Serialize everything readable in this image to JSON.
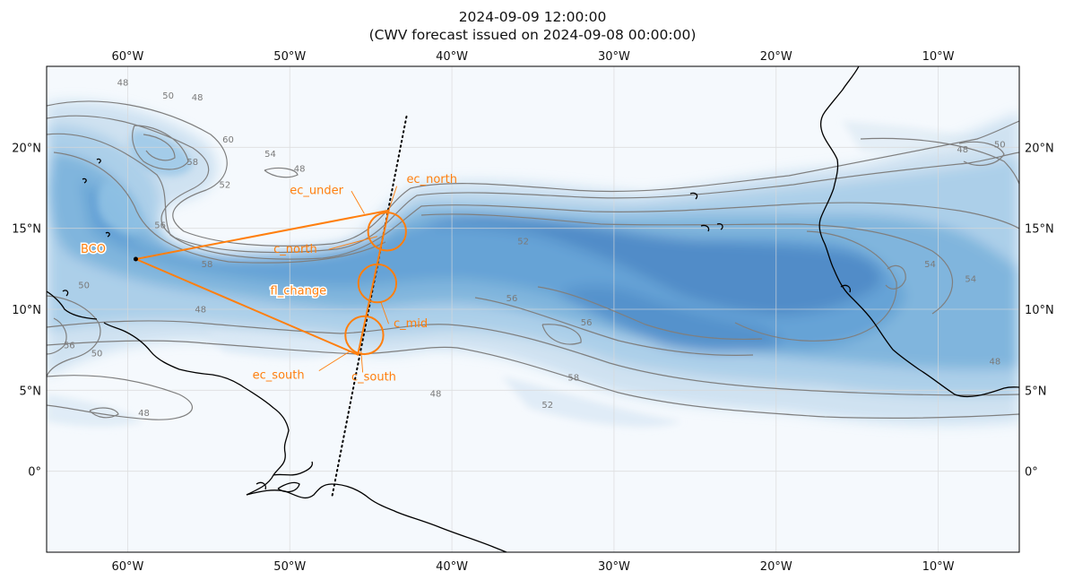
{
  "title": {
    "line1": "2024-09-09 12:00:00",
    "line2": "(CWV forecast issued on 2024-09-08 00:00:00)"
  },
  "map": {
    "extent": {
      "lon": [
        -65,
        -5
      ],
      "lat": [
        -5,
        25
      ]
    },
    "lon_ticks": [
      {
        "value": -60,
        "label": "60°W"
      },
      {
        "value": -50,
        "label": "50°W"
      },
      {
        "value": -40,
        "label": "40°W"
      },
      {
        "value": -30,
        "label": "30°W"
      },
      {
        "value": -20,
        "label": "20°W"
      },
      {
        "value": -10,
        "label": "10°W"
      }
    ],
    "lat_ticks": [
      {
        "value": 20,
        "label": "20°N"
      },
      {
        "value": 15,
        "label": "15°N"
      },
      {
        "value": 10,
        "label": "10°N"
      },
      {
        "value": 5,
        "label": "5°N"
      },
      {
        "value": 0,
        "label": "0°"
      }
    ],
    "gridlines": true,
    "colors": {
      "background": "#f5f9fd",
      "cwv_light": "#c6dcef",
      "cwv_mid": "#8dbde0",
      "cwv_dark": "#4a8ac8",
      "contour": "#7f7f7f",
      "coast": "#000000",
      "flight": "#ff7f0e"
    }
  },
  "contour_labels": [
    {
      "text": "48",
      "lon": -60.3,
      "lat": 23.8
    },
    {
      "text": "50",
      "lon": -57.5,
      "lat": 23.0
    },
    {
      "text": "48",
      "lon": -55.7,
      "lat": 22.9
    },
    {
      "text": "60",
      "lon": -53.8,
      "lat": 20.3
    },
    {
      "text": "54",
      "lon": -51.2,
      "lat": 19.4
    },
    {
      "text": "48",
      "lon": -49.4,
      "lat": 18.5
    },
    {
      "text": "58",
      "lon": -56.0,
      "lat": 18.9
    },
    {
      "text": "52",
      "lon": -54.0,
      "lat": 17.5
    },
    {
      "text": "56",
      "lon": -58.0,
      "lat": 15.0
    },
    {
      "text": "58",
      "lon": -55.1,
      "lat": 12.6
    },
    {
      "text": "50",
      "lon": -62.7,
      "lat": 11.3
    },
    {
      "text": "48",
      "lon": -55.5,
      "lat": 9.8
    },
    {
      "text": "56",
      "lon": -63.6,
      "lat": 7.6
    },
    {
      "text": "50",
      "lon": -61.9,
      "lat": 7.1
    },
    {
      "text": "48",
      "lon": -59.0,
      "lat": 3.4
    },
    {
      "text": "52",
      "lon": -35.6,
      "lat": 14.0
    },
    {
      "text": "56",
      "lon": -36.3,
      "lat": 10.5
    },
    {
      "text": "56",
      "lon": -31.7,
      "lat": 9.0
    },
    {
      "text": "58",
      "lon": -32.5,
      "lat": 5.6
    },
    {
      "text": "48",
      "lon": -41.0,
      "lat": 4.6
    },
    {
      "text": "52",
      "lon": -34.1,
      "lat": 3.9
    },
    {
      "text": "54",
      "lon": -10.5,
      "lat": 12.6
    },
    {
      "text": "54",
      "lon": -8.0,
      "lat": 11.7
    },
    {
      "text": "50",
      "lon": -6.2,
      "lat": 20.0
    },
    {
      "text": "48",
      "lon": -8.5,
      "lat": 19.7
    },
    {
      "text": "48",
      "lon": -6.5,
      "lat": 6.6
    }
  ],
  "flight": {
    "bco": {
      "lon": -59.5,
      "lat": 13.1
    },
    "bco_label": "BCO",
    "fl_change_label": "fl_change",
    "track": [
      {
        "lon": -59.5,
        "lat": 13.1
      },
      {
        "lon": -43.9,
        "lat": 16.1
      },
      {
        "lon": -45.8,
        "lat": 7.2
      },
      {
        "lon": -59.5,
        "lat": 13.1
      }
    ],
    "circles": [
      {
        "name": "c_north",
        "lon": -44.0,
        "lat": 14.8,
        "radius_deg": 1.17
      },
      {
        "name": "c_mid",
        "lon": -44.6,
        "lat": 11.6,
        "radius_deg": 1.17
      },
      {
        "name": "c_south",
        "lon": -45.4,
        "lat": 8.4,
        "radius_deg": 1.17
      }
    ],
    "satellite_track": {
      "start": {
        "lon": -42.8,
        "lat": 21.9
      },
      "end": {
        "lon": -47.4,
        "lat": -1.6
      }
    },
    "labels": [
      {
        "text": "ec_under",
        "lon": -50.0,
        "lat": 17.1
      },
      {
        "text": "ec_north",
        "lon": -42.8,
        "lat": 17.8
      },
      {
        "text": "c_north",
        "lon": -51.0,
        "lat": 13.5
      },
      {
        "text": "c_mid",
        "lon": -43.6,
        "lat": 8.9
      },
      {
        "text": "ec_south",
        "lon": -52.3,
        "lat": 5.7
      },
      {
        "text": "c_south",
        "lon": -46.2,
        "lat": 5.6
      }
    ]
  }
}
